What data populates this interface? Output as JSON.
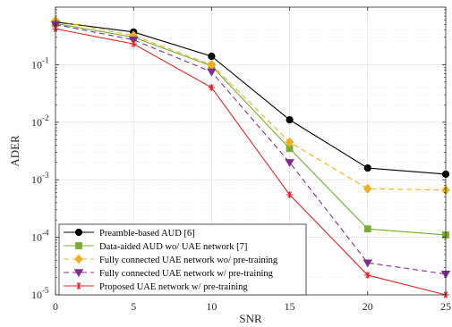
{
  "chart_data": {
    "type": "line",
    "title": "",
    "xlabel": "SNR",
    "ylabel": "ADER",
    "yscale": "log",
    "xlim": [
      0,
      25
    ],
    "ylim": [
      1e-05,
      1
    ],
    "grid": true,
    "legend_position": "bottom-left",
    "x": [
      0,
      5,
      10,
      15,
      20,
      25
    ],
    "x_ticks": [
      "0",
      "5",
      "10",
      "15",
      "20",
      "25"
    ],
    "y_ticks": [
      {
        "value": 1e-05,
        "base": "10",
        "exp": "-5"
      },
      {
        "value": 0.0001,
        "base": "10",
        "exp": "-4"
      },
      {
        "value": 0.001,
        "base": "10",
        "exp": "-3"
      },
      {
        "value": 0.01,
        "base": "10",
        "exp": "-2"
      },
      {
        "value": 0.1,
        "base": "10",
        "exp": "-1"
      }
    ],
    "series": [
      {
        "name": "Preamble-based AUD [6]",
        "color": "#000000",
        "marker": "circle",
        "dash": "solid",
        "values": [
          0.55,
          0.37,
          0.14,
          0.011,
          0.0016,
          0.00125
        ]
      },
      {
        "name": "Data-aided AUD wo/ UAE network [7]",
        "color": "#77ac30",
        "marker": "square",
        "dash": "solid",
        "values": [
          0.52,
          0.3,
          0.095,
          0.0035,
          0.00014,
          0.00011
        ]
      },
      {
        "name": "Fully connected UAE network wo/ pre-training",
        "color": "#edb120",
        "marker": "diamond",
        "dash": "dashed",
        "values": [
          0.58,
          0.32,
          0.1,
          0.0045,
          0.0007,
          0.00066
        ]
      },
      {
        "name": "Fully connected UAE network w/ pre-training",
        "color": "#7e2f8e",
        "marker": "triangle-down",
        "dash": "dashed",
        "values": [
          0.5,
          0.27,
          0.075,
          0.002,
          3.6e-05,
          2.3e-05
        ]
      },
      {
        "name": "Proposed UAE network w/ pre-training",
        "color": "#d7262d",
        "marker": "asterisk",
        "dash": "solid",
        "values": [
          0.42,
          0.23,
          0.04,
          0.00055,
          2.2e-05,
          1e-05
        ]
      }
    ]
  }
}
